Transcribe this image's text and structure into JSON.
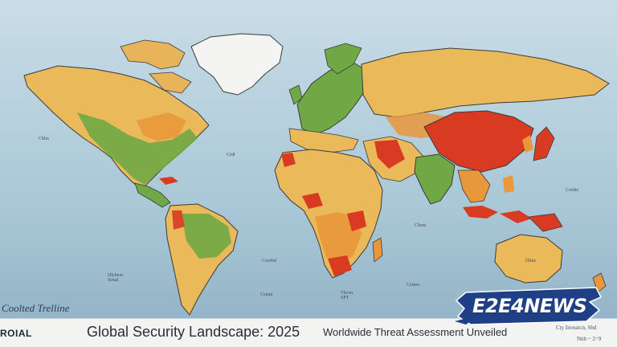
{
  "map": {
    "colors": {
      "ocean": "#b9d3e0",
      "low_threat": "#6fa845",
      "moderate_threat": "#e9b95a",
      "elevated_threat": "#e8973a",
      "high_threat": "#d93a22",
      "ice": "#f4f4f2"
    },
    "country_labels": {
      "north_pacific": "Cbhn",
      "atlantic": "Crdt",
      "south_america_west": "Hlcheut\nSenal",
      "south_atlantic": "Coorbd",
      "africa_south": "Thcen\nSPT",
      "indian_ocean_east": "Cetnes",
      "indian_ocean_south": "Clenu",
      "pacific_west": "Cxtthe",
      "australia": "Dluts",
      "south_ocean": "Cenan"
    },
    "corner_label": "Coolted Trelline"
  },
  "footer": {
    "brand": "ROIAL",
    "headline": "Global Security Landscape: 2025",
    "subhead": "Worldwide Threat Assessment Unveiled",
    "credit_top": "Cty Inveatcn, Sbd",
    "credit_bottom": "Nnb ~ 2=9"
  },
  "logo": {
    "text": "E2E4NEWS",
    "color": "#1f3f86"
  }
}
